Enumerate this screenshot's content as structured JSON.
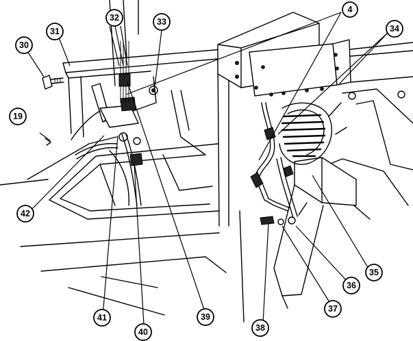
{
  "callouts": [
    {
      "id": "c4",
      "label": "4"
    },
    {
      "id": "c19",
      "label": "19"
    },
    {
      "id": "c30",
      "label": "30"
    },
    {
      "id": "c31",
      "label": "31"
    },
    {
      "id": "c32",
      "label": "32"
    },
    {
      "id": "c33",
      "label": "33"
    },
    {
      "id": "c34",
      "label": "34"
    },
    {
      "id": "c35",
      "label": "35"
    },
    {
      "id": "c36",
      "label": "36"
    },
    {
      "id": "c37",
      "label": "37"
    },
    {
      "id": "c38",
      "label": "38"
    },
    {
      "id": "c39",
      "label": "39"
    },
    {
      "id": "c40",
      "label": "40"
    },
    {
      "id": "c41",
      "label": "41"
    },
    {
      "id": "c42",
      "label": "42"
    }
  ]
}
